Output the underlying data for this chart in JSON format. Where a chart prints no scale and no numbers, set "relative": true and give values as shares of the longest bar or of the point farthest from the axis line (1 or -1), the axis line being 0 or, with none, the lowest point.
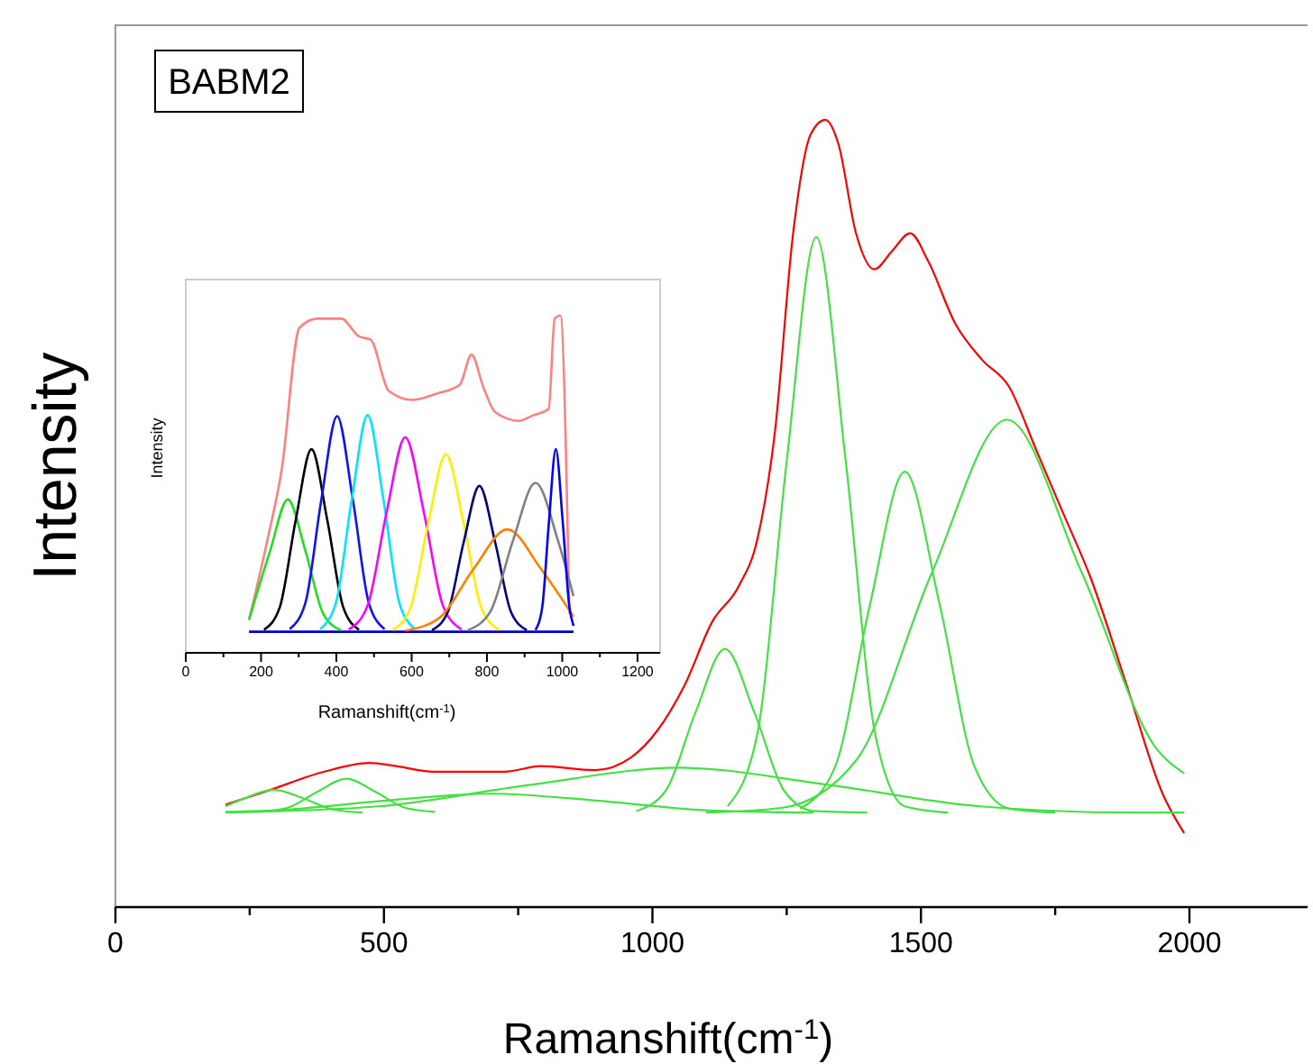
{
  "chart_data": [
    {
      "type": "line",
      "relative": true,
      "xlabel": "Ramanshift(cm$^{-1}$)",
      "ylabel": "Intensity",
      "annotations": [
        "BABM2"
      ],
      "xlim": [
        0,
        2220
      ],
      "xticks": [
        0,
        {
          "value": 250,
          "label": null
        },
        500,
        {
          "value": 750,
          "label": null
        },
        1000,
        {
          "value": 1250,
          "label": null
        },
        1500,
        {
          "value": 1750,
          "label": null
        },
        2000
      ],
      "tick_labels": "x",
      "line_style": "solid",
      "series": [
        {
          "color": "#ff0000",
          "x": [
            205,
            289,
            389,
            473,
            523,
            591,
            725,
            792,
            893,
            960,
            1010,
            1060,
            1111,
            1161,
            1195,
            1228,
            1262,
            1295,
            1322,
            1346,
            1379,
            1413,
            1446,
            1480,
            1513,
            1564,
            1614,
            1664,
            1715,
            1765,
            1815,
            1883,
            1950,
            1990
          ],
          "values": [
            0.13,
            0.149,
            0.172,
            0.183,
            0.179,
            0.172,
            0.172,
            0.179,
            0.174,
            0.19,
            0.225,
            0.282,
            0.362,
            0.408,
            0.466,
            0.603,
            0.856,
            0.982,
            1.0,
            0.97,
            0.856,
            0.81,
            0.833,
            0.856,
            0.821,
            0.741,
            0.695,
            0.661,
            0.58,
            0.5,
            0.42,
            0.282,
            0.144,
            0.094
          ]
        },
        {
          "color": "#44e044",
          "x": [
            205,
            240,
            295,
            350,
            405,
            460
          ],
          "values": [
            0.128,
            0.138,
            0.149,
            0.138,
            0.124,
            0.12
          ]
        },
        {
          "color": "#44e044",
          "x": [
            265,
            320,
            375,
            430,
            485,
            540,
            595
          ],
          "values": [
            0.121,
            0.126,
            0.146,
            0.163,
            0.146,
            0.126,
            0.121
          ]
        },
        {
          "color": "#44e044",
          "x": [
            205,
            300,
            500,
            700,
            900,
            1100,
            1300
          ],
          "values": [
            0.121,
            0.123,
            0.135,
            0.144,
            0.135,
            0.123,
            0.12
          ]
        },
        {
          "color": "#44e044",
          "x": [
            205,
            490,
            770,
            1050,
            1330,
            1610,
            1890,
            1990
          ],
          "values": [
            0.12,
            0.128,
            0.155,
            0.177,
            0.155,
            0.128,
            0.12,
            0.12
          ]
        },
        {
          "color": "#44e044",
          "x": [
            970,
            1025,
            1080,
            1135,
            1190,
            1245,
            1300,
            1400
          ],
          "values": [
            0.122,
            0.148,
            0.247,
            0.328,
            0.247,
            0.148,
            0.122,
            0.12
          ]
        },
        {
          "color": "#44e044",
          "x": [
            1140,
            1195,
            1250,
            1305,
            1360,
            1415,
            1470,
            1550
          ],
          "values": [
            0.128,
            0.219,
            0.566,
            0.851,
            0.566,
            0.219,
            0.128,
            0.12
          ]
        },
        {
          "color": "#44e044",
          "x": [
            1275,
            1340,
            1405,
            1470,
            1535,
            1600,
            1665,
            1750
          ],
          "values": [
            0.125,
            0.178,
            0.384,
            0.553,
            0.384,
            0.178,
            0.125,
            0.12
          ]
        },
        {
          "color": "#44e044",
          "x": [
            1100,
            1240,
            1380,
            1520,
            1660,
            1800,
            1940,
            1990
          ],
          "values": [
            0.12,
            0.126,
            0.187,
            0.424,
            0.619,
            0.424,
            0.2,
            0.17
          ]
        }
      ]
    },
    {
      "type": "line",
      "relative": true,
      "xlabel": "Ramanshift(cm$^{-1}$)",
      "ylabel": "Intensity",
      "xlim": [
        0,
        1260
      ],
      "xticks": [
        0,
        {
          "value": 100,
          "label": null
        },
        200,
        {
          "value": 300,
          "label": null
        },
        400,
        {
          "value": 500,
          "label": null
        },
        600,
        {
          "value": 700,
          "label": null
        },
        800,
        {
          "value": 900,
          "label": null
        },
        1000,
        {
          "value": 1100,
          "label": null
        },
        1200
      ],
      "tick_labels": "x",
      "line_style": "solid",
      "series": [
        {
          "color": "#ff8080",
          "x": [
            168,
            216,
            255,
            302,
            350,
            413,
            460,
            491,
            539,
            602,
            665,
            728,
            759,
            791,
            822,
            885,
            924,
            964,
            980,
            995,
            1019
          ],
          "values": [
            0.098,
            0.33,
            0.545,
            0.964,
            0.991,
            0.991,
            0.938,
            0.929,
            0.777,
            0.75,
            0.768,
            0.795,
            0.884,
            0.786,
            0.714,
            0.688,
            0.705,
            0.723,
            0.991,
            1.0,
            0.116
          ]
        },
        {
          "color": "#0000cc",
          "x": [
            168,
            1030
          ],
          "values": [
            0.0625,
            0.0625
          ]
        },
        {
          "color": "#22dd22",
          "x": [
            168,
            224,
            271,
            318,
            365,
            412
          ],
          "values": [
            0.098,
            0.302,
            0.455,
            0.302,
            0.116,
            0.067
          ]
        },
        {
          "color": "#000000",
          "x": [
            208,
            250,
            292,
            334,
            376,
            418,
            460
          ],
          "values": [
            0.068,
            0.136,
            0.393,
            0.604,
            0.393,
            0.136,
            0.068
          ]
        },
        {
          "color": "#1010ff",
          "x": [
            276,
            318,
            360,
            402,
            444,
            486,
            528
          ],
          "values": [
            0.07,
            0.149,
            0.453,
            0.702,
            0.453,
            0.149,
            0.07
          ]
        },
        {
          "color": "#00e5ff",
          "x": [
            357,
            399,
            441,
            483,
            525,
            567,
            609
          ],
          "values": [
            0.07,
            0.149,
            0.455,
            0.705,
            0.455,
            0.149,
            0.07
          ]
        },
        {
          "color": "#ff00ff",
          "x": [
            433,
            483,
            533,
            583,
            633,
            683,
            733
          ],
          "values": [
            0.069,
            0.14,
            0.414,
            0.639,
            0.414,
            0.14,
            0.069
          ]
        },
        {
          "color": "#ffee00",
          "x": [
            550,
            597,
            644,
            691,
            738,
            785,
            832
          ],
          "values": [
            0.068,
            0.134,
            0.384,
            0.589,
            0.384,
            0.134,
            0.068
          ]
        },
        {
          "color": "#000080",
          "x": [
            654,
            696,
            738,
            780,
            822,
            864,
            906
          ],
          "values": [
            0.067,
            0.121,
            0.327,
            0.495,
            0.327,
            0.121,
            0.067
          ]
        },
        {
          "color": "#ff8000",
          "x": [
            584,
            674,
            764,
            854,
            944,
            1030
          ],
          "values": [
            0.066,
            0.104,
            0.248,
            0.366,
            0.248,
            0.107
          ]
        },
        {
          "color": "#808080",
          "x": [
            749,
            809,
            869,
            929,
            989,
            1030
          ],
          "values": [
            0.067,
            0.122,
            0.332,
            0.504,
            0.332,
            0.168
          ]
        },
        {
          "color": "#0000ff",
          "x": [
            929,
            947,
            965,
            983,
            1001,
            1019,
            1030
          ],
          "values": [
            0.068,
            0.136,
            0.393,
            0.604,
            0.393,
            0.136,
            0.08
          ]
        }
      ]
    }
  ]
}
